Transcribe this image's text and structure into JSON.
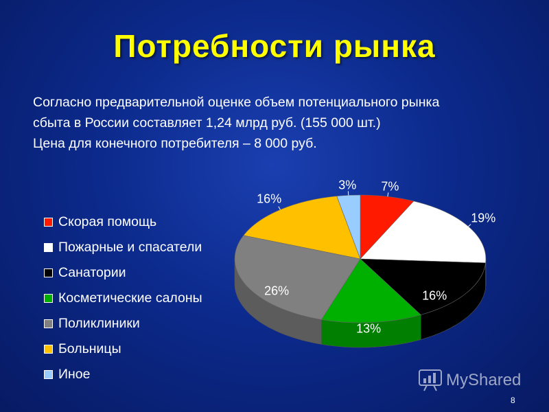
{
  "slide": {
    "title": "Потребности рынка",
    "intro_lines": [
      "Согласно предварительной оценке объем потенциального рынка",
      "сбыта в России составляет  1,24 млрд руб. (155 000 шт.)",
      "Цена для конечного потребителя – 8 000 руб."
    ],
    "page_number": "8"
  },
  "watermark": {
    "text": "MyShared",
    "icon": "myshared-logo-icon"
  },
  "legend": [
    {
      "label": "Скорая помощь",
      "color": "#ff1a00"
    },
    {
      "label": "Пожарные и спасатели",
      "color": "#ffffff"
    },
    {
      "label": "Санатории",
      "color": "#000000"
    },
    {
      "label": "Косметические салоны",
      "color": "#00b000"
    },
    {
      "label": "Поликлиники",
      "color": "#808080"
    },
    {
      "label": "Больницы",
      "color": "#ffc000"
    },
    {
      "label": "Иное",
      "color": "#99ccff"
    }
  ],
  "chart_data": {
    "type": "pie",
    "style": "3d",
    "legend_position": "left",
    "categories": [
      "Скорая помощь",
      "Пожарные и спасатели",
      "Санатории",
      "Косметические салоны",
      "Поликлиники",
      "Больницы",
      "Иное"
    ],
    "values": [
      7,
      19,
      16,
      13,
      26,
      16,
      3
    ],
    "data_labels": [
      "7%",
      "19%",
      "16%",
      "13%",
      "26%",
      "16%",
      "3%"
    ],
    "colors": [
      "#ff1a00",
      "#ffffff",
      "#000000",
      "#00b000",
      "#808080",
      "#ffc000",
      "#99ccff"
    ]
  }
}
